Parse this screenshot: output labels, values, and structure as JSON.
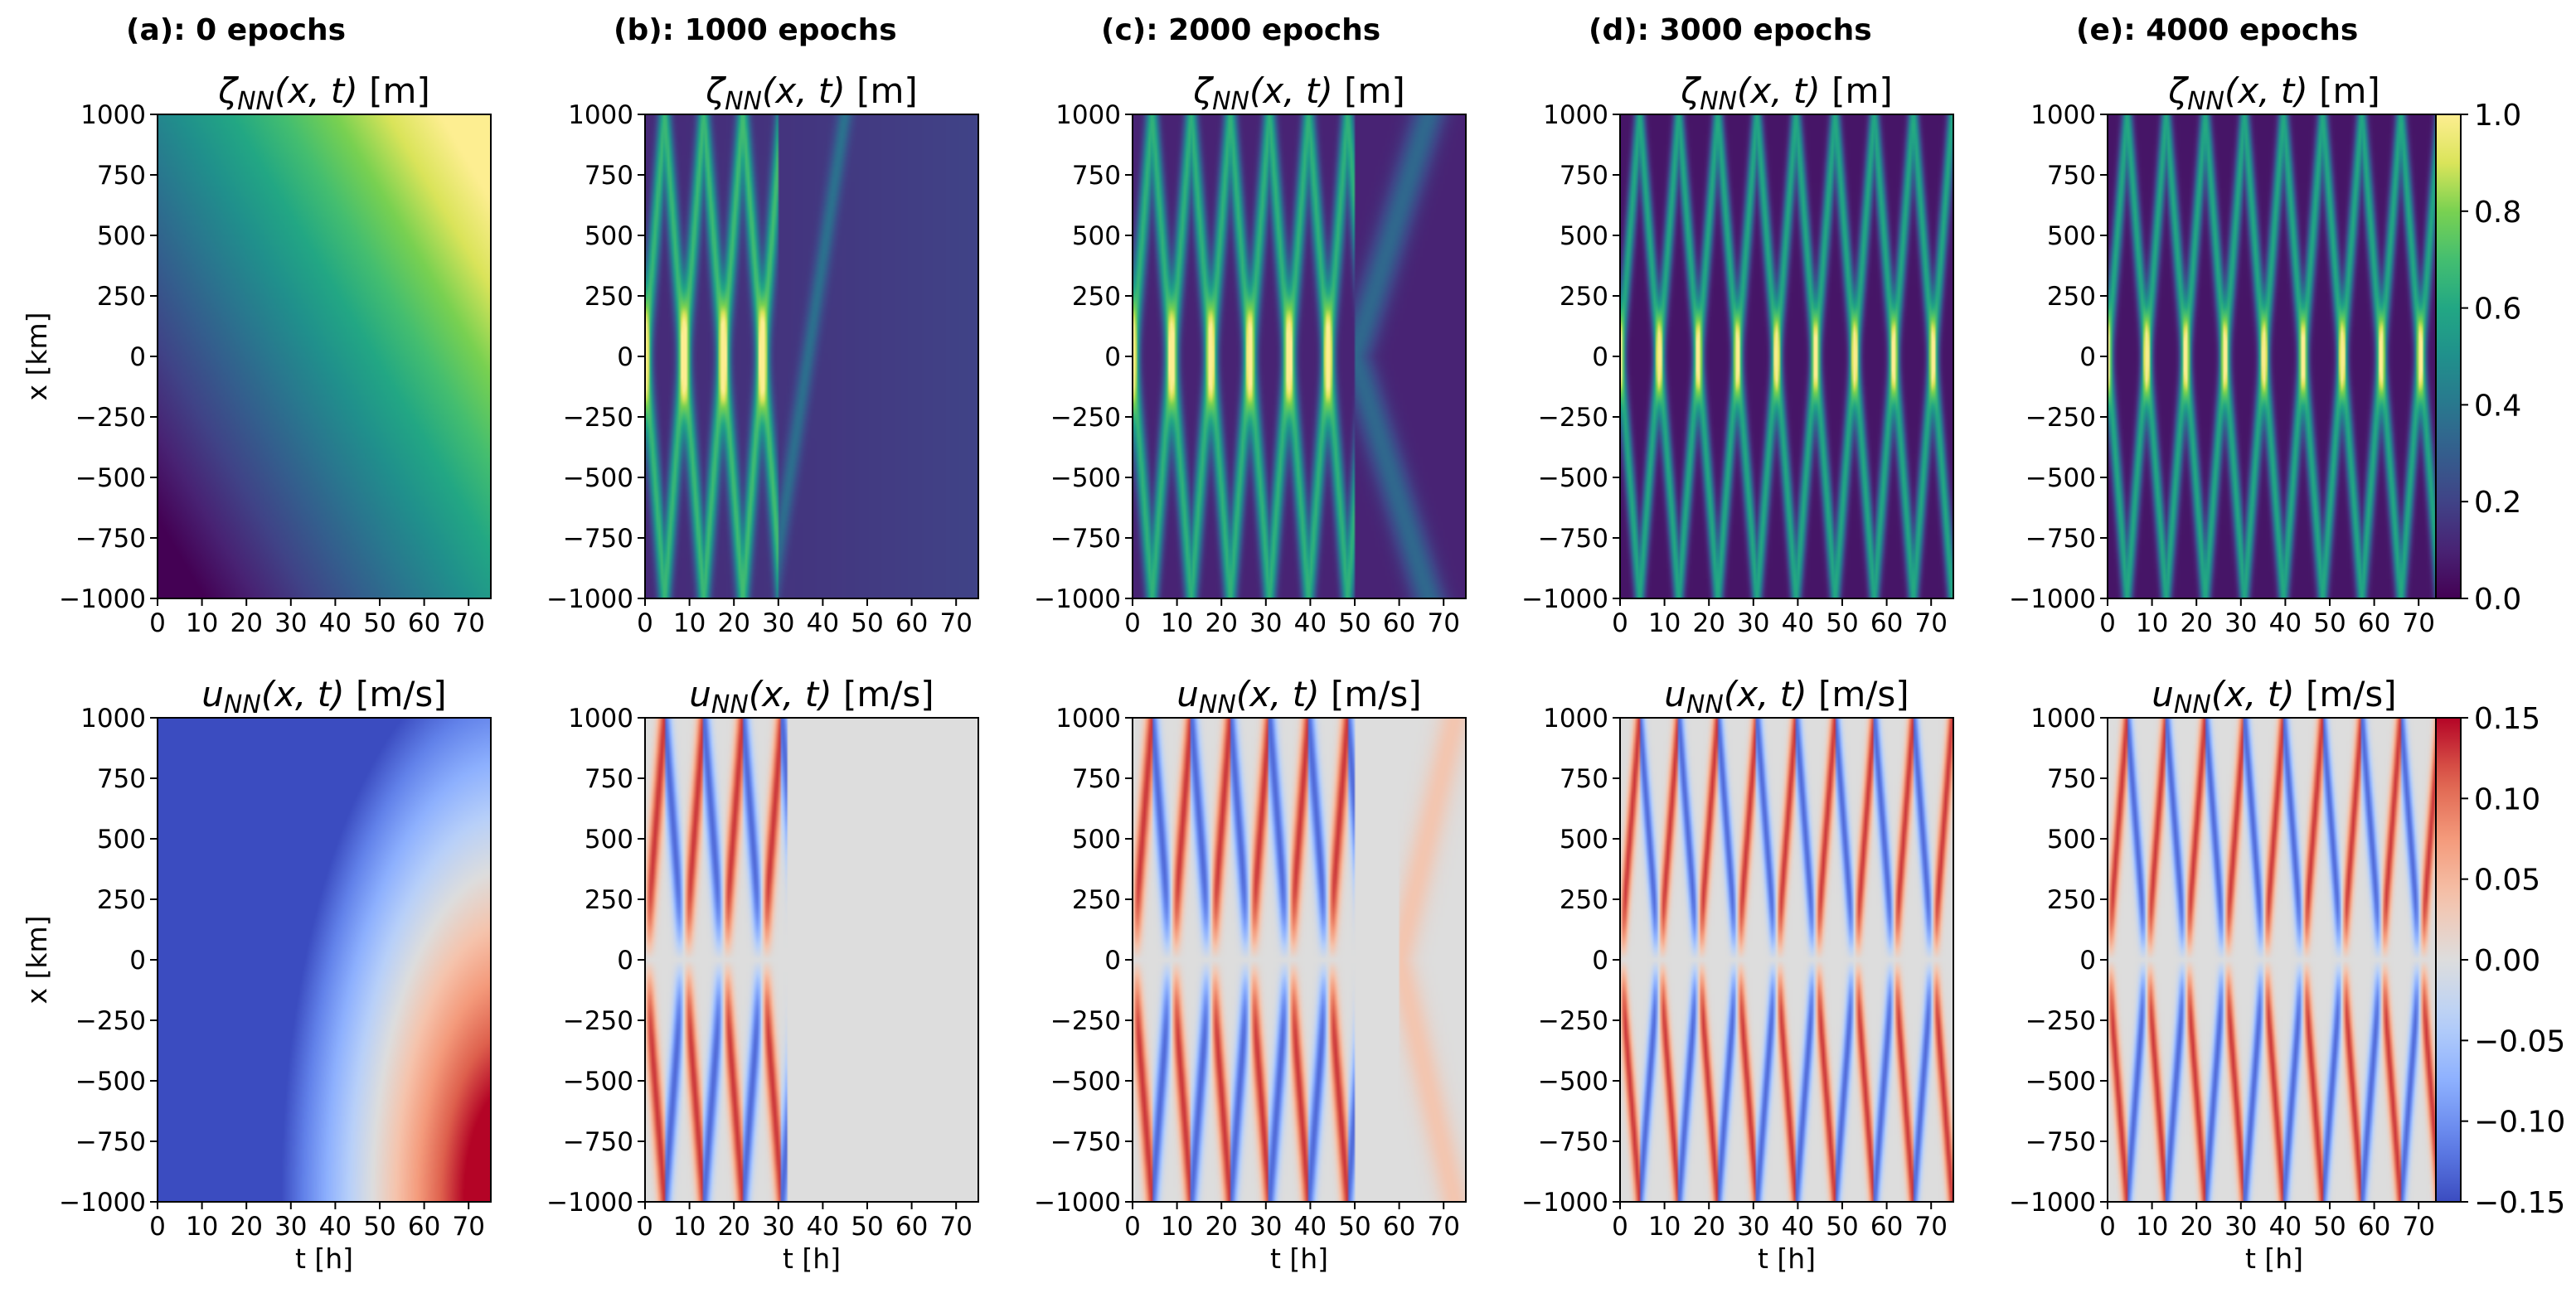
{
  "chart_data": [
    {
      "type": "heatmap",
      "panel": "(a): 0 epochs",
      "row": "zeta",
      "title": "ζ_NN(x, t) [m]",
      "ylabel": "x [km]",
      "xlabel": "",
      "xlim": [
        0,
        75
      ],
      "ylim": [
        -1000,
        1000
      ],
      "clim": [
        0,
        1
      ],
      "colormap": "viridis",
      "epochs": 0
    },
    {
      "type": "heatmap",
      "panel": "(b): 1000 epochs",
      "row": "zeta",
      "title": "ζ_NN(x, t) [m]",
      "ylabel": "",
      "xlabel": "",
      "xlim": [
        0,
        75
      ],
      "ylim": [
        -1000,
        1000
      ],
      "clim": [
        0,
        1
      ],
      "colormap": "viridis",
      "epochs": 1000
    },
    {
      "type": "heatmap",
      "panel": "(c): 2000 epochs",
      "row": "zeta",
      "title": "ζ_NN(x, t) [m]",
      "ylabel": "",
      "xlabel": "",
      "xlim": [
        0,
        75
      ],
      "ylim": [
        -1000,
        1000
      ],
      "clim": [
        0,
        1
      ],
      "colormap": "viridis",
      "epochs": 2000
    },
    {
      "type": "heatmap",
      "panel": "(d): 3000 epochs",
      "row": "zeta",
      "title": "ζ_NN(x, t) [m]",
      "ylabel": "",
      "xlabel": "",
      "xlim": [
        0,
        75
      ],
      "ylim": [
        -1000,
        1000
      ],
      "clim": [
        0,
        1
      ],
      "colormap": "viridis",
      "epochs": 3000
    },
    {
      "type": "heatmap",
      "panel": "(e): 4000 epochs",
      "row": "zeta",
      "title": "ζ_NN(x, t) [m]",
      "ylabel": "",
      "xlabel": "",
      "xlim": [
        0,
        75
      ],
      "ylim": [
        -1000,
        1000
      ],
      "clim": [
        0,
        1
      ],
      "colormap": "viridis",
      "epochs": 4000
    },
    {
      "type": "heatmap",
      "panel": "(a): 0 epochs",
      "row": "u",
      "title": "u_NN(x, t) [m/s]",
      "ylabel": "x [km]",
      "xlabel": "t [h]",
      "xlim": [
        0,
        75
      ],
      "ylim": [
        -1000,
        1000
      ],
      "clim": [
        -0.15,
        0.15
      ],
      "colormap": "coolwarm",
      "epochs": 0
    },
    {
      "type": "heatmap",
      "panel": "(b): 1000 epochs",
      "row": "u",
      "title": "u_NN(x, t) [m/s]",
      "ylabel": "",
      "xlabel": "t [h]",
      "xlim": [
        0,
        75
      ],
      "ylim": [
        -1000,
        1000
      ],
      "clim": [
        -0.15,
        0.15
      ],
      "colormap": "coolwarm",
      "epochs": 1000
    },
    {
      "type": "heatmap",
      "panel": "(c): 2000 epochs",
      "row": "u",
      "title": "u_NN(x, t) [m/s]",
      "ylabel": "",
      "xlabel": "t [h]",
      "xlim": [
        0,
        75
      ],
      "ylim": [
        -1000,
        1000
      ],
      "clim": [
        -0.15,
        0.15
      ],
      "colormap": "coolwarm",
      "epochs": 2000
    },
    {
      "type": "heatmap",
      "panel": "(d): 3000 epochs",
      "row": "u",
      "title": "u_NN(x, t) [m/s]",
      "ylabel": "",
      "xlabel": "t [h]",
      "xlim": [
        0,
        75
      ],
      "ylim": [
        -1000,
        1000
      ],
      "clim": [
        -0.15,
        0.15
      ],
      "colormap": "coolwarm",
      "epochs": 3000
    },
    {
      "type": "heatmap",
      "panel": "(e): 4000 epochs",
      "row": "u",
      "title": "u_NN(x, t) [m/s]",
      "ylabel": "",
      "xlabel": "t [h]",
      "xlim": [
        0,
        75
      ],
      "ylim": [
        -1000,
        1000
      ],
      "clim": [
        -0.15,
        0.15
      ],
      "colormap": "coolwarm",
      "epochs": 4000
    }
  ],
  "column_titles": [
    "(a): 0 epochs",
    "(b): 1000 epochs",
    "(c): 2000 epochs",
    "(d): 3000 epochs",
    "(e): 4000 epochs"
  ],
  "x_ticks": [
    "0",
    "10",
    "20",
    "30",
    "40",
    "50",
    "60",
    "70"
  ],
  "x_tick_values": [
    0,
    10,
    20,
    30,
    40,
    50,
    60,
    70
  ],
  "y_ticks": [
    "−1000",
    "−750",
    "−500",
    "−250",
    "0",
    "250",
    "500",
    "750",
    "1000"
  ],
  "y_tick_values": [
    -1000,
    -750,
    -500,
    -250,
    0,
    250,
    500,
    750,
    1000
  ],
  "colorbar_zeta": {
    "ticks": [
      "0.0",
      "0.2",
      "0.4",
      "0.6",
      "0.8",
      "1.0"
    ],
    "values": [
      0,
      0.2,
      0.4,
      0.6,
      0.8,
      1.0
    ]
  },
  "colorbar_u": {
    "ticks": [
      "−0.15",
      "−0.10",
      "−0.05",
      "0.00",
      "0.05",
      "0.10",
      "0.15"
    ],
    "values": [
      -0.15,
      -0.1,
      -0.05,
      0,
      0.05,
      0.1,
      0.15
    ]
  },
  "zeta_title_main": "ζ",
  "zeta_title_sub": "NN",
  "zeta_title_args": "(x, t)",
  "zeta_title_unit": " [m]",
  "u_title_main": "u",
  "u_title_sub": "NN",
  "u_title_args": "(x, t)",
  "u_title_unit": " [m/s]",
  "ylabel_text": "x [km]",
  "xlabel_text": "t [h]"
}
